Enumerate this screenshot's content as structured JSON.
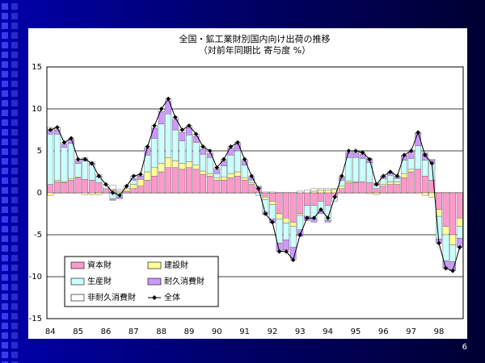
{
  "slide_number": "6",
  "chart_data": {
    "type": "bar",
    "stacked": true,
    "title": "全国・鉱工業財別国内向け出荷の推移",
    "subtitle": "（対前年同期比 寄与度 %）",
    "categories": [
      "84",
      null,
      null,
      null,
      "85",
      null,
      null,
      null,
      "86",
      null,
      null,
      null,
      "87",
      null,
      null,
      null,
      "88",
      null,
      null,
      null,
      "89",
      null,
      null,
      null,
      "90",
      null,
      null,
      null,
      "91",
      null,
      null,
      null,
      "92",
      null,
      null,
      null,
      "93",
      null,
      null,
      null,
      "94",
      null,
      null,
      null,
      "95",
      null,
      null,
      null,
      "96",
      null,
      null,
      null,
      "97",
      null,
      null,
      null,
      "98",
      null,
      null,
      null
    ],
    "ylim": [
      -15,
      15
    ],
    "yticks": [
      -15,
      -10,
      -5,
      0,
      5,
      10,
      15
    ],
    "grid": true,
    "legend": "lower-left",
    "series": [
      {
        "name": "資本財",
        "color": "#ff99cc",
        "values": [
          1,
          1.3,
          1.2,
          1.5,
          1.8,
          1.6,
          1.5,
          1.2,
          0.5,
          0.3,
          0,
          0.2,
          0.5,
          0.8,
          1.5,
          2,
          2.5,
          3,
          3,
          2.8,
          3,
          2.8,
          2.2,
          2,
          1.5,
          1.5,
          1.8,
          2,
          1.5,
          1,
          0.5,
          -0.5,
          -1,
          -2.5,
          -3,
          -3.5,
          -2.5,
          -1.5,
          -1.5,
          -1,
          -1.5,
          -0.5,
          0.5,
          1.2,
          1.2,
          1.3,
          1.2,
          0.5,
          0.8,
          1,
          1,
          1.8,
          2.5,
          2.8,
          2,
          1.5,
          -2,
          -4,
          -5,
          -3
        ]
      },
      {
        "name": "建設財",
        "color": "#ffff99",
        "values": [
          -0.3,
          0.2,
          0.1,
          0.2,
          0.1,
          -0.2,
          -0.2,
          -0.2,
          0,
          0.1,
          0.2,
          0.3,
          0.5,
          0.8,
          1,
          1,
          1,
          1.2,
          0.8,
          0.7,
          0.7,
          0.5,
          0.4,
          0.3,
          0.3,
          0.4,
          0.5,
          0.5,
          0.3,
          0.2,
          0,
          -0.3,
          -0.4,
          -0.6,
          -0.6,
          -0.5,
          -0.2,
          0,
          0.2,
          0.3,
          0.3,
          0.4,
          0.3,
          0.2,
          0.1,
          0,
          -0.1,
          -0.2,
          0.2,
          0.3,
          0.3,
          0.5,
          0.3,
          0,
          -0.3,
          -0.5,
          -0.8,
          -1,
          -1.2,
          -1
        ]
      },
      {
        "name": "生産財",
        "color": "#ccffff",
        "values": [
          6,
          5.5,
          4.1,
          4.2,
          1.6,
          2.2,
          1.8,
          0.7,
          0,
          -0.7,
          -0.5,
          0,
          0.5,
          0,
          2,
          3.5,
          4.7,
          5.2,
          3.7,
          2.7,
          3.2,
          2.7,
          2,
          1.9,
          0.5,
          1.3,
          2.2,
          2.5,
          1.5,
          0.3,
          -0.3,
          -1.5,
          -1.7,
          -2.9,
          -2,
          -2.5,
          -1.7,
          -1.3,
          -1.6,
          -1.2,
          -1.8,
          -0.5,
          0.7,
          2.8,
          2.9,
          2.8,
          2.4,
          0.4,
          0.7,
          0.8,
          0.4,
          1.6,
          1.3,
          2.8,
          1.9,
          2.1,
          -2.7,
          -3.1,
          -2,
          -1.4
        ]
      },
      {
        "name": "耐久消費財",
        "color": "#cc99ff",
        "values": [
          0.5,
          0.5,
          0.4,
          0.4,
          0.3,
          0.2,
          0.2,
          0.1,
          0,
          -0.2,
          -0.2,
          0,
          0.2,
          0.4,
          0.8,
          1.2,
          1.5,
          1.5,
          1.2,
          1,
          0.8,
          0.7,
          0.6,
          0.5,
          0.5,
          0.6,
          0.8,
          0.8,
          0.5,
          0.3,
          0.2,
          -0.3,
          -0.5,
          -1,
          -1.2,
          -1.3,
          -0.8,
          -0.5,
          -0.4,
          -0.3,
          -0.2,
          0,
          0.3,
          0.6,
          0.6,
          0.5,
          0.4,
          0.2,
          0.2,
          0.3,
          0.2,
          0.5,
          0.8,
          1.5,
          0.8,
          0.3,
          -0.5,
          -0.8,
          -1,
          -1
        ]
      },
      {
        "name": "非耐久消費財",
        "color": "#ffffff",
        "values": [
          0.3,
          0.3,
          0.2,
          0.2,
          0.2,
          0.2,
          0.2,
          0.2,
          0.5,
          0.5,
          0.2,
          0.3,
          0.3,
          0.2,
          0.2,
          0.3,
          0.3,
          0.3,
          0.3,
          0.3,
          0.3,
          0.3,
          0.3,
          0.3,
          0.2,
          0.2,
          0.2,
          0.2,
          0.2,
          0.2,
          0.1,
          0.1,
          0.1,
          0,
          -0.2,
          -0.2,
          0.2,
          0.3,
          0.3,
          0.2,
          0.2,
          0.1,
          0.2,
          0.2,
          0.2,
          0.2,
          0.1,
          0.1,
          0.1,
          0.1,
          0.1,
          0.1,
          0.1,
          0.1,
          0.1,
          0.1,
          0,
          -0.1,
          -0.1,
          -0.1
        ]
      },
      {
        "name": "全体",
        "color": "#000000",
        "type": "line",
        "values": [
          7.5,
          7.8,
          6,
          6.5,
          4,
          4,
          3.5,
          2,
          1,
          0,
          -0.3,
          0.8,
          2,
          2.2,
          5.5,
          8,
          10,
          11.2,
          9,
          7.5,
          8,
          7,
          5.5,
          5,
          3,
          4,
          5.5,
          6,
          4,
          2,
          0.5,
          -2.5,
          -3.5,
          -7,
          -7,
          -8,
          -5,
          -3,
          -3,
          -2,
          -3,
          -0.5,
          2,
          5,
          5,
          4.8,
          4,
          1,
          2,
          2.5,
          2,
          4.5,
          5,
          7.2,
          4.5,
          3.5,
          -6,
          -9,
          -9.3,
          -6.5
        ]
      }
    ]
  }
}
